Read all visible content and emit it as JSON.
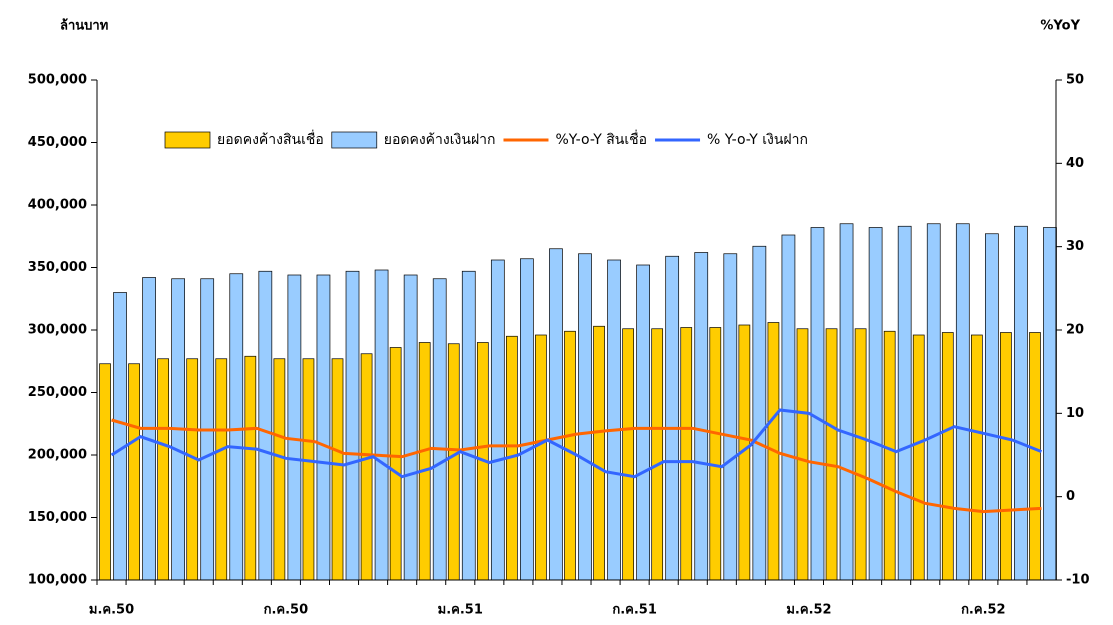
{
  "chart_data": {
    "type": "bar-line",
    "y_label": "ล้านบาท",
    "y2_label": "%YoY",
    "categories": [
      "ม.ค.50",
      null,
      null,
      null,
      null,
      null,
      "ก.ค.50",
      null,
      null,
      null,
      null,
      null,
      "ม.ค.51",
      null,
      null,
      null,
      null,
      null,
      "ก.ค.51",
      null,
      null,
      null,
      null,
      null,
      "ม.ค.52",
      null,
      null,
      null,
      null,
      null,
      "ก.ค.52",
      null,
      null
    ],
    "ylim": [
      100000,
      500000
    ],
    "yticks": [
      {
        "value": 100000,
        "label": "100,000"
      },
      {
        "value": 150000,
        "label": "150,000"
      },
      {
        "value": 200000,
        "label": "200,000"
      },
      {
        "value": 250000,
        "label": "250,000"
      },
      {
        "value": 300000,
        "label": "300,000"
      },
      {
        "value": 350000,
        "label": "350,000"
      },
      {
        "value": 400000,
        "label": "400,000"
      },
      {
        "value": 450000,
        "label": "450,000"
      },
      {
        "value": 500000,
        "label": "500,000"
      }
    ],
    "y2lim": [
      -10,
      50
    ],
    "y2ticks": [
      -10,
      0,
      10,
      20,
      30,
      40,
      50
    ],
    "series": [
      {
        "name": "ยอดคงค้างสินเชื่อ",
        "kind": "bar",
        "color": "#ffcc00",
        "values": [
          273000,
          273000,
          277000,
          277000,
          277000,
          279000,
          277000,
          277000,
          277000,
          281000,
          286000,
          290000,
          289000,
          290000,
          295000,
          296000,
          299000,
          303000,
          301000,
          301000,
          302000,
          302000,
          304000,
          306000,
          301000,
          301000,
          301000,
          299000,
          296000,
          298000,
          296000,
          298000,
          298000
        ]
      },
      {
        "name": "ยอดคงค้างเงินฝาก",
        "kind": "bar",
        "color": "#99ccff",
        "values": [
          330000,
          342000,
          341000,
          341000,
          345000,
          347000,
          344000,
          344000,
          347000,
          348000,
          344000,
          341000,
          347000,
          356000,
          357000,
          365000,
          361000,
          356000,
          352000,
          359000,
          362000,
          361000,
          367000,
          376000,
          382000,
          385000,
          382000,
          383000,
          385000,
          385000,
          377000,
          383000,
          382000
        ]
      },
      {
        "name": "%Y-o-Y สินเชื่อ",
        "kind": "line",
        "axis": "y2",
        "color": "#ff6600",
        "values": [
          9.2,
          8.2,
          8.2,
          8,
          8,
          8.2,
          7,
          6.6,
          5.2,
          5,
          4.8,
          5.8,
          5.6,
          6.1,
          6.1,
          6.8,
          7.5,
          7.9,
          8.2,
          8.2,
          8.2,
          7.5,
          6.8,
          5.2,
          4.2,
          3.6,
          2.2,
          0.6,
          -0.8,
          -1.4,
          -1.8,
          -1.6,
          -1.4
        ]
      },
      {
        "name": "% Y-o-Y เงินฝาก",
        "kind": "line",
        "axis": "y2",
        "color": "#3366ff",
        "values": [
          5,
          7.2,
          6,
          4.4,
          6,
          5.7,
          4.6,
          4.2,
          3.8,
          4.8,
          2.4,
          3.4,
          5.4,
          4.1,
          5,
          6.8,
          5,
          3,
          2.4,
          4.2,
          4.2,
          3.6,
          6.2,
          10.4,
          10,
          8,
          6.8,
          5.4,
          6.8,
          8.4,
          7.6,
          6.8,
          5.4
        ]
      }
    ]
  }
}
